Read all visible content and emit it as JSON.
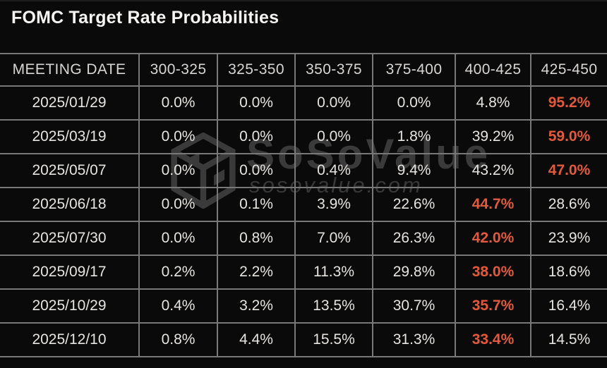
{
  "title": "FOMC Target Rate Probabilities",
  "chart_data": {
    "type": "table",
    "title": "FOMC Target Rate Probabilities",
    "columns": [
      "MEETING DATE",
      "300-325",
      "325-350",
      "350-375",
      "375-400",
      "400-425",
      "425-450"
    ],
    "rows": [
      {
        "meeting_date": "2025/01/29",
        "probabilities": [
          "0.0%",
          "0.0%",
          "0.0%",
          "0.0%",
          "4.8%",
          "95.2%"
        ],
        "highlight_column": "425-450"
      },
      {
        "meeting_date": "2025/03/19",
        "probabilities": [
          "0.0%",
          "0.0%",
          "0.0%",
          "1.8%",
          "39.2%",
          "59.0%"
        ],
        "highlight_column": "425-450"
      },
      {
        "meeting_date": "2025/05/07",
        "probabilities": [
          "0.0%",
          "0.0%",
          "0.4%",
          "9.4%",
          "43.2%",
          "47.0%"
        ],
        "highlight_column": "425-450"
      },
      {
        "meeting_date": "2025/06/18",
        "probabilities": [
          "0.0%",
          "0.1%",
          "3.9%",
          "22.6%",
          "44.7%",
          "28.6%"
        ],
        "highlight_column": "400-425"
      },
      {
        "meeting_date": "2025/07/30",
        "probabilities": [
          "0.0%",
          "0.8%",
          "7.0%",
          "26.3%",
          "42.0%",
          "23.9%"
        ],
        "highlight_column": "400-425"
      },
      {
        "meeting_date": "2025/09/17",
        "probabilities": [
          "0.2%",
          "2.2%",
          "11.3%",
          "29.8%",
          "38.0%",
          "18.6%"
        ],
        "highlight_column": "400-425"
      },
      {
        "meeting_date": "2025/10/29",
        "probabilities": [
          "0.4%",
          "3.2%",
          "13.5%",
          "30.7%",
          "35.7%",
          "16.4%"
        ],
        "highlight_column": "400-425"
      },
      {
        "meeting_date": "2025/12/10",
        "probabilities": [
          "0.8%",
          "4.4%",
          "15.5%",
          "31.3%",
          "33.4%",
          "14.5%"
        ],
        "highlight_column": "400-425"
      }
    ],
    "layout": {
      "grid": "on",
      "highlight_style": "bold-orange"
    }
  },
  "watermark": {
    "logo": "sosovalue-cube-logo",
    "brand": "SoSoValue",
    "domain": "sosovalue.com"
  },
  "colors": {
    "background": "#0a0a0a",
    "grid": "#787878",
    "title_text": "#f5f4f2",
    "header_text": "#d8d6d4",
    "cell_text": "#e6e4e1",
    "highlight": "#e25a3b",
    "watermark": "#3a3a3a"
  }
}
